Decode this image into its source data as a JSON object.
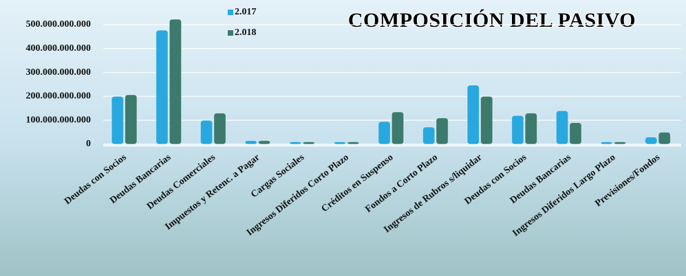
{
  "chart_data": {
    "type": "bar",
    "title": "COMPOSICIÓN DEL PASIVO",
    "categories": [
      "Deudas con Socios",
      "Deudas Bancarias",
      "Deudas Comerciales",
      "Impuestos y Retenc. a Pagar",
      "Cargas Sociales",
      "Ingresos Diferidos Corto Plazo",
      "Créditos en Suspenso",
      "Fondos a Corto Plazo",
      "Ingresos de Rubros s/liquidar",
      "Deudas con Socios",
      "Deudas Bancarias",
      "Ingresos Diferidos Largo Plazo",
      "Previsiones/Fondos"
    ],
    "series": [
      {
        "name": "2.017",
        "color": "#29a8e0",
        "values": [
          200000000000,
          477000000000,
          100000000000,
          15000000000,
          10000000000,
          10000000000,
          95000000000,
          72000000000,
          247000000000,
          120000000000,
          140000000000,
          10000000000,
          30000000000
        ]
      },
      {
        "name": "2.018",
        "color": "#3d7a6e",
        "values": [
          207000000000,
          523000000000,
          130000000000,
          15000000000,
          10000000000,
          10000000000,
          135000000000,
          110000000000,
          200000000000,
          130000000000,
          90000000000,
          10000000000,
          50000000000
        ]
      }
    ],
    "ylim": [
      0,
      500000000000
    ],
    "yticks": [
      0,
      {
        "value": 100000000000,
        "label": "100.000.000.000"
      },
      {
        "value": 200000000000,
        "label": "200.000.000.000"
      },
      {
        "value": 300000000000,
        "label": "300.000.000.000"
      },
      {
        "value": 400000000000,
        "label": "400.000.000.000"
      },
      {
        "value": 500000000000,
        "label": "500.000.000.000"
      }
    ],
    "grid": true
  }
}
